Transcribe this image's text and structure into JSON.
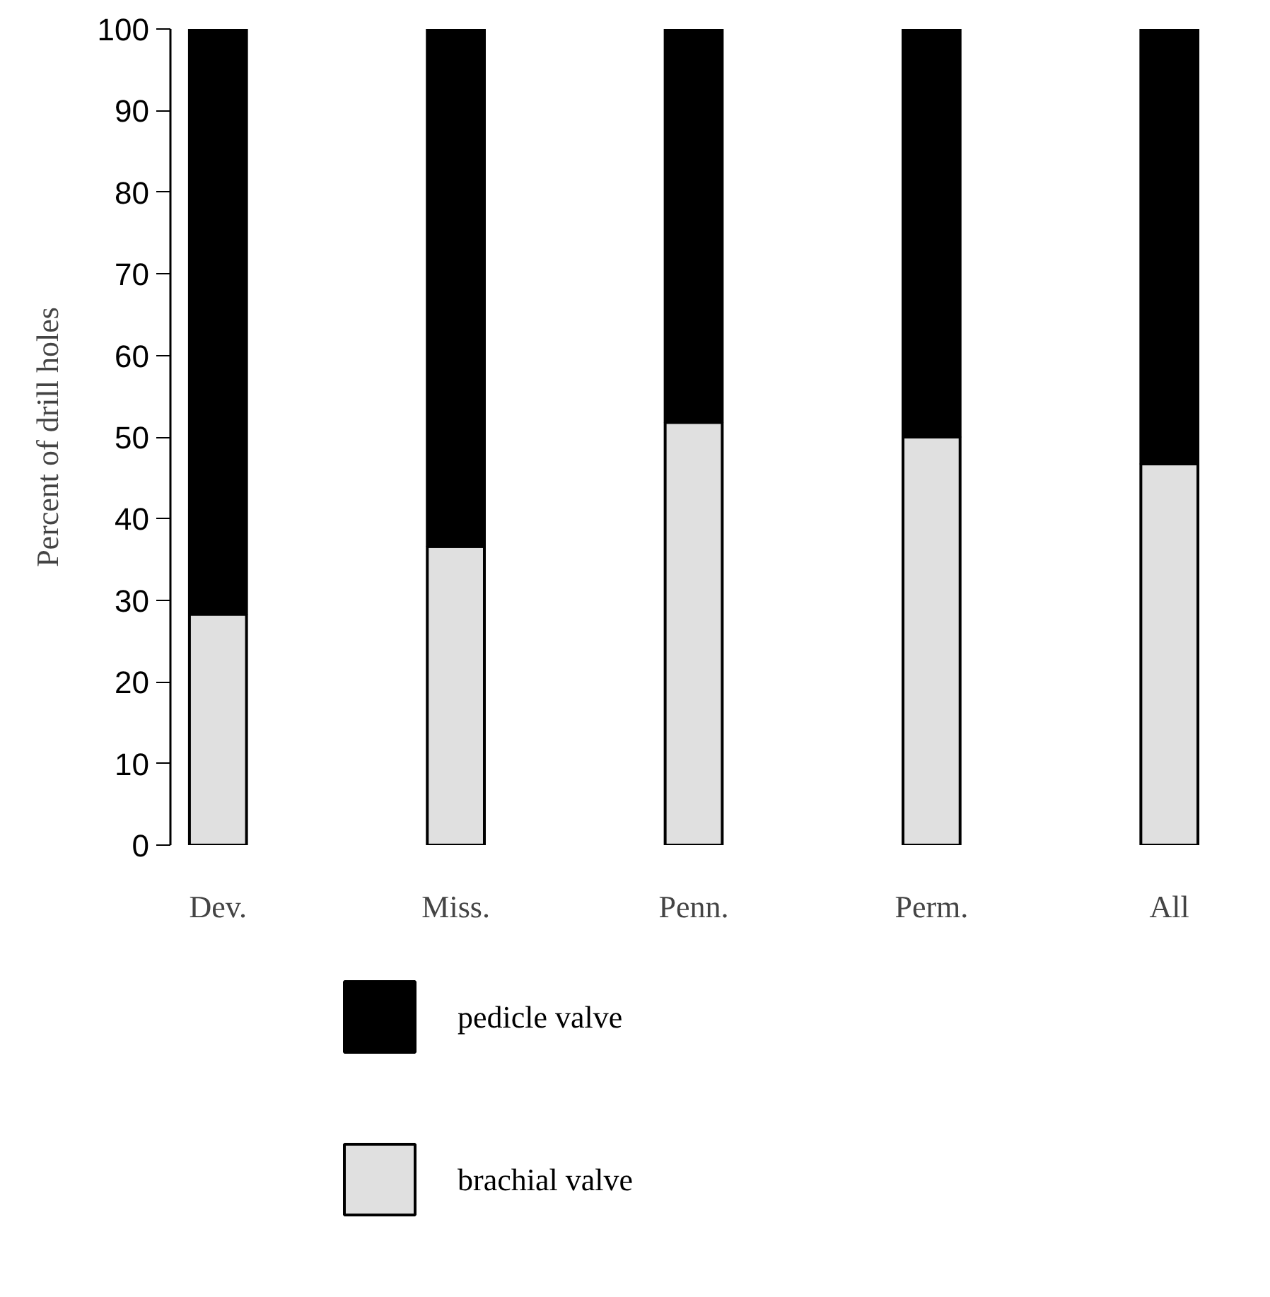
{
  "chart_data": {
    "type": "bar",
    "stacked": true,
    "ylabel": "Percent of drill holes",
    "categories": [
      "Dev.",
      "Miss.",
      "Penn.",
      "Perm.",
      "All"
    ],
    "series": [
      {
        "name": "brachial valve",
        "color": "#e0e0e0",
        "values": [
          28.3,
          36.6,
          51.8,
          50,
          46.7
        ]
      },
      {
        "name": "pedicle valve",
        "color": "#000000",
        "values": [
          71.7,
          63.4,
          48.2,
          50,
          53.3
        ]
      }
    ],
    "ylim": [
      0,
      100
    ],
    "yticks": [
      0,
      10,
      20,
      30,
      40,
      50,
      60,
      70,
      80,
      90,
      100
    ],
    "grid": false,
    "legend": "bottom"
  }
}
